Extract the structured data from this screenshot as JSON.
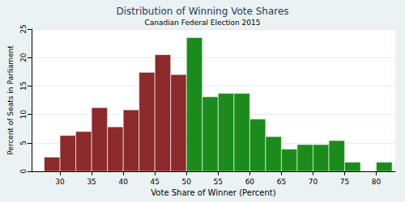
{
  "chart_data": {
    "type": "histogram",
    "title": "Distribution of Winning Vote Shares",
    "subtitle": "Canadian Federal Election 2015",
    "x_label": "Vote Share of Winner (Percent)",
    "y_label": "Percent of Seats in Parliament",
    "bins": [
      27.5,
      30,
      32.5,
      35,
      37.5,
      40,
      42.5,
      45,
      47.5,
      50,
      52.5,
      55,
      57.5,
      60,
      62.5,
      65,
      67.5,
      70,
      72.5,
      75,
      77.5,
      80,
      82.5
    ],
    "values": [
      2.5,
      6.3,
      7.0,
      11.2,
      7.8,
      10.8,
      17.4,
      20.5,
      17.0,
      23.5,
      13.1,
      13.7,
      13.7,
      9.2,
      6.1,
      3.9,
      4.7,
      4.7,
      5.4,
      1.6,
      0,
      1.6
    ],
    "colors": [
      "#8c2a2b",
      "#8c2a2b",
      "#8c2a2b",
      "#8c2a2b",
      "#8c2a2b",
      "#8c2a2b",
      "#8c2a2b",
      "#8c2a2b",
      "#8c2a2b",
      "#1b8c1b",
      "#1b8c1b",
      "#1b8c1b",
      "#1b8c1b",
      "#1b8c1b",
      "#1b8c1b",
      "#1b8c1b",
      "#1b8c1b",
      "#1b8c1b",
      "#1b8c1b",
      "#1b8c1b",
      "#1b8c1b",
      "#1b8c1b"
    ],
    "xlim": [
      25.5,
      83
    ],
    "xticks": [
      30,
      35,
      40,
      45,
      50,
      55,
      60,
      65,
      70,
      75,
      80
    ],
    "ylim": [
      0,
      25
    ],
    "yticks": [
      0,
      5,
      10,
      15,
      20,
      25
    ],
    "grid": true
  }
}
